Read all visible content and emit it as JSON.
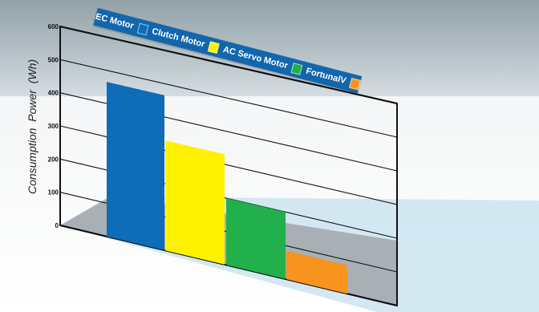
{
  "chart_data": {
    "type": "bar",
    "categories": [
      "EC Motor",
      "Clutch Motor",
      "AC Servo Motor",
      "FortunalV"
    ],
    "values": [
      465,
      330,
      200,
      85
    ],
    "ylabel": "Consumption  Power  (Wh)",
    "ylim": [
      0,
      600
    ],
    "yticks": [
      0,
      100,
      200,
      300,
      400,
      500,
      600
    ],
    "grid": true,
    "legend": "top",
    "colors": [
      "#0f6cb6",
      "#fff200",
      "#21b04b",
      "#f7941d"
    ]
  }
}
